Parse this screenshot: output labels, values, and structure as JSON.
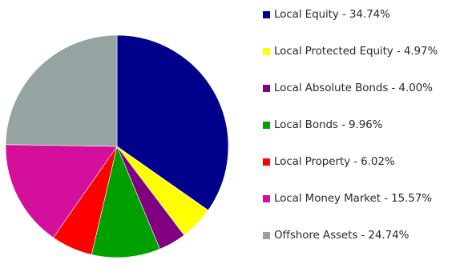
{
  "chart_data": {
    "type": "pie",
    "title": "",
    "slices": [
      {
        "name": "Local Equity",
        "value": 34.74,
        "color": "#00008b",
        "legend_text": "Local Equity -  34.74%"
      },
      {
        "name": "Local Protected Equity",
        "value": 4.97,
        "color": "#ffff00",
        "legend_text": "Local Protected Equity - 4.97%"
      },
      {
        "name": "Local Absolute Bonds",
        "value": 4.0,
        "color": "#800080",
        "legend_text": "Local Absolute Bonds -  4.00%"
      },
      {
        "name": "Local Bonds",
        "value": 9.96,
        "color": "#00a000",
        "legend_text": "Local Bonds -  9.96%"
      },
      {
        "name": "Local Property",
        "value": 6.02,
        "color": "#ff0000",
        "legend_text": "Local Property - 6.02%"
      },
      {
        "name": "Local Money Market",
        "value": 15.57,
        "color": "#d40f9c",
        "legend_text": "Local Money Market -  15.57%"
      },
      {
        "name": "Offshore Assets",
        "value": 24.74,
        "color": "#95a3a3",
        "legend_text": "Offshore Assets -  24.74%"
      }
    ],
    "legend_position": "right"
  }
}
